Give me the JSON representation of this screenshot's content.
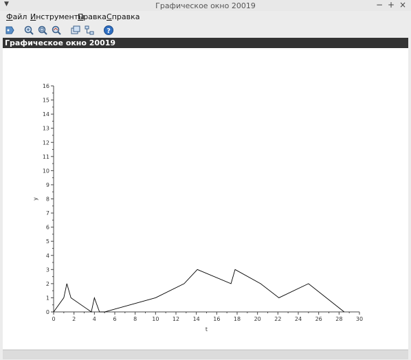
{
  "window": {
    "title": "Графическое окно 20019",
    "controls": {
      "minimize": "−",
      "maximize": "+",
      "close": "×"
    }
  },
  "menu": {
    "items": [
      {
        "label": "Файл",
        "mnemonic": "Ф",
        "rest": "айл"
      },
      {
        "label": "Инструменты",
        "mnemonic": "И",
        "rest": "нструменты"
      },
      {
        "label": "Правка",
        "mnemonic": "П",
        "rest": "равка"
      },
      {
        "label": "Справка",
        "mnemonic": "С",
        "rest": "правка"
      }
    ]
  },
  "toolbar": {
    "icons": [
      "datatip-icon",
      "zoom-icon",
      "zoom-original-icon",
      "pan-zoom-icon",
      "rotate-icon",
      "tree-icon",
      "help-icon"
    ]
  },
  "axes_header": {
    "title": "Графическое окно 20019"
  },
  "chart_data": {
    "type": "line",
    "xlabel": "t",
    "ylabel": "y",
    "xlim": [
      0,
      30
    ],
    "ylim": [
      0,
      16
    ],
    "x_ticks": [
      "0",
      "2",
      "4",
      "6",
      "8",
      "10",
      "12",
      "14",
      "16",
      "18",
      "20",
      "22",
      "24",
      "26",
      "28",
      "30"
    ],
    "y_ticks": [
      "0",
      "1",
      "2",
      "3",
      "4",
      "5",
      "6",
      "7",
      "8",
      "9",
      "10",
      "11",
      "12",
      "13",
      "14",
      "15",
      "16"
    ],
    "grid": false,
    "series": [
      {
        "color": "#000000",
        "x": [
          0,
          1,
          1.3,
          1.7,
          3.7,
          4.0,
          4.5,
          5.0,
          10,
          12.8,
          14.1,
          17.4,
          17.8,
          20.3,
          22.1,
          25.0,
          28.5
        ],
        "y": [
          0,
          1,
          2,
          1,
          0,
          1,
          0,
          0,
          1,
          2,
          3,
          2,
          3,
          2,
          1,
          2,
          0
        ]
      }
    ]
  }
}
